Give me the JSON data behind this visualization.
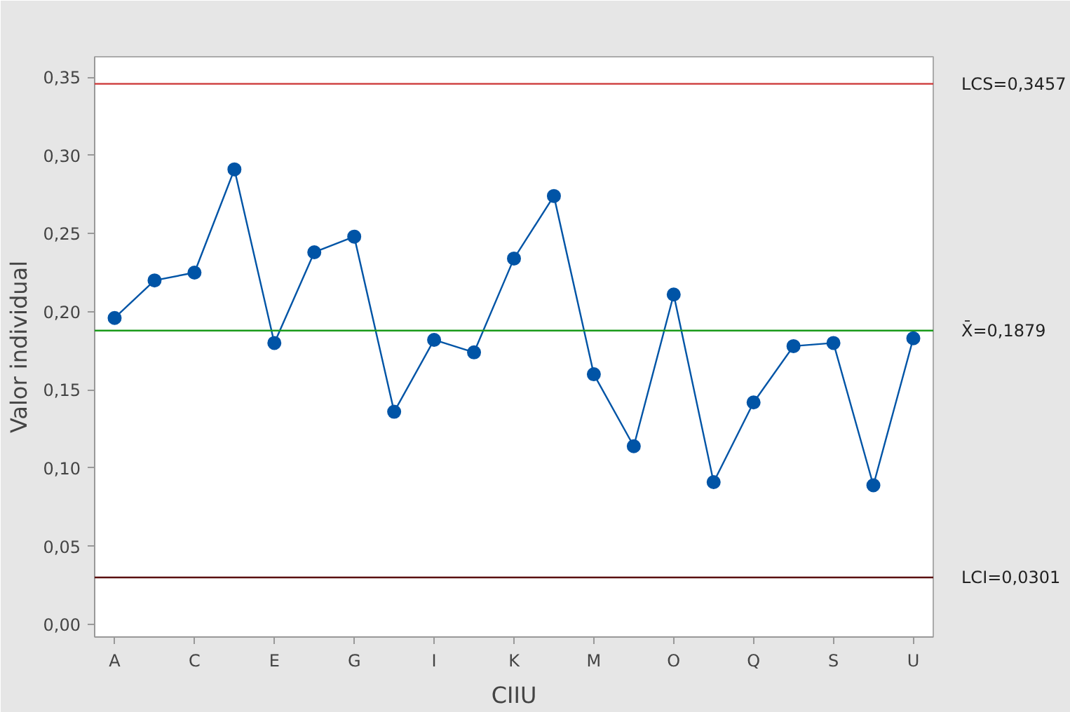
{
  "chart_data": {
    "type": "line",
    "xlabel": "CIIU",
    "ylabel": "Valor individual",
    "categories": [
      "A",
      null,
      "C",
      null,
      "E",
      null,
      "G",
      null,
      "I",
      null,
      "K",
      null,
      "M",
      null,
      "O",
      null,
      "Q",
      null,
      "S",
      null,
      "U"
    ],
    "series": [
      {
        "color": "#0054a6",
        "values": [
          0.196,
          0.22,
          0.225,
          0.291,
          0.18,
          0.238,
          0.248,
          0.136,
          0.182,
          0.174,
          0.234,
          0.274,
          0.16,
          0.114,
          0.211,
          0.091,
          0.142,
          0.178,
          0.18,
          0.089,
          0.183
        ]
      }
    ],
    "marker": "circle",
    "line_style": "solid",
    "grid": false,
    "ylim": [
      -0.008,
      0.363
    ],
    "yticks": [
      {
        "value": 0,
        "label": "0,00"
      },
      {
        "value": 0.05,
        "label": "0,05"
      },
      {
        "value": 0.1,
        "label": "0,10"
      },
      {
        "value": 0.15,
        "label": "0,15"
      },
      {
        "value": 0.2,
        "label": "0,20"
      },
      {
        "value": 0.25,
        "label": "0,25"
      },
      {
        "value": 0.3,
        "label": "0,30"
      },
      {
        "value": 0.35,
        "label": "0,35"
      }
    ],
    "ref_lines": [
      {
        "axis": "y",
        "value": 0.3457,
        "label": "LCS=0,3457",
        "color": "#cc3333"
      },
      {
        "axis": "y",
        "value": 0.1879,
        "label": "X̄=0,1879",
        "color": "#1a9a1a"
      },
      {
        "axis": "y",
        "value": 0.0301,
        "label": "LCI=0,0301",
        "color": "#5a1010"
      }
    ]
  }
}
